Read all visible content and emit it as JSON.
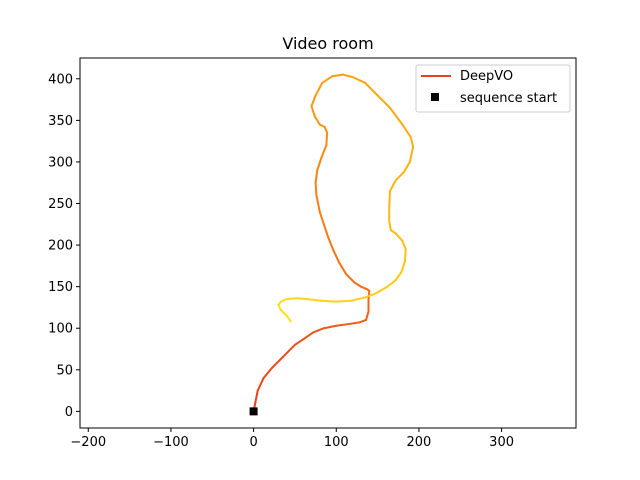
{
  "chart_data": {
    "type": "line",
    "title": "Video room",
    "xlabel": "",
    "ylabel": "",
    "xlim": [
      -210,
      390
    ],
    "ylim": [
      -20,
      425
    ],
    "x_ticks": [
      -200,
      -100,
      0,
      100,
      200,
      300
    ],
    "y_ticks": [
      0,
      50,
      100,
      150,
      200,
      250,
      300,
      350,
      400
    ],
    "x_tick_labels": [
      "−200",
      "−100",
      "0",
      "100",
      "200",
      "300"
    ],
    "y_tick_labels": [
      "0",
      "50",
      "100",
      "150",
      "200",
      "250",
      "300",
      "350",
      "400"
    ],
    "grid": false,
    "legend_position": "top-right",
    "series": [
      {
        "name": "DeepVO",
        "color_start": "#e8401b",
        "color_mid": "#ff9a10",
        "color_end": "#ffe21a",
        "x": [
          0,
          2,
          5,
          12,
          22,
          35,
          50,
          62,
          72,
          85,
          100,
          115,
          128,
          136,
          139,
          139,
          140,
          137,
          130,
          122,
          112,
          103,
          96,
          90,
          85,
          80,
          76,
          75,
          77,
          82,
          88,
          89,
          86,
          80,
          74,
          70,
          75,
          83,
          95,
          108,
          120,
          135,
          150,
          165,
          180,
          190,
          193,
          189,
          182,
          172,
          165,
          164,
          164,
          166,
          172,
          180,
          184,
          183,
          179,
          172,
          162,
          148,
          135,
          118,
          100,
          82,
          65,
          52,
          40,
          33,
          30,
          33,
          40,
          45
        ],
        "y": [
          0,
          10,
          25,
          40,
          52,
          65,
          80,
          88,
          95,
          100,
          103,
          105,
          107,
          110,
          120,
          135,
          145,
          147,
          150,
          155,
          165,
          180,
          195,
          210,
          225,
          240,
          260,
          275,
          290,
          305,
          320,
          335,
          342,
          345,
          355,
          367,
          380,
          395,
          403,
          405,
          402,
          395,
          380,
          365,
          345,
          330,
          318,
          300,
          288,
          278,
          265,
          245,
          230,
          218,
          214,
          205,
          195,
          180,
          168,
          158,
          150,
          142,
          137,
          133,
          132,
          133,
          135,
          136,
          135,
          132,
          128,
          122,
          115,
          108
        ]
      }
    ],
    "markers": [
      {
        "name": "sequence start",
        "x": 0,
        "y": 0,
        "color": "#000000",
        "shape": "square"
      }
    ]
  }
}
